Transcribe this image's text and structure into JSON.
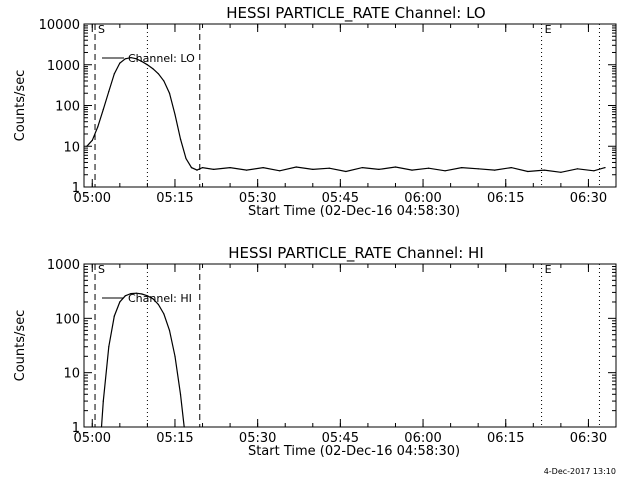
{
  "footer": {
    "date_stamp": "4-Dec-2017 13:10"
  },
  "colors": {
    "background": "#ffffff",
    "ink": "#000000"
  },
  "chart_data": [
    {
      "type": "line",
      "title": "HESSI PARTICLE_RATE Channel: LO",
      "xlabel": "Start Time (02-Dec-16 04:58:30)",
      "ylabel": "Counts/sec",
      "y_scale": "log",
      "xlim": [
        "04:58:30",
        "06:35:00"
      ],
      "ylim": [
        1,
        10000
      ],
      "x_tick_labels": [
        "05:00",
        "05:15",
        "05:30",
        "05:45",
        "06:00",
        "06:15",
        "06:30"
      ],
      "y_tick_labels": [
        "1",
        "10",
        "100",
        "1000",
        "10000"
      ],
      "legend": "Channel: LO",
      "legend_position": "top-left",
      "markers": [
        {
          "label": "S",
          "time": "05:00:30",
          "style": "dashed"
        },
        {
          "label": "",
          "time": "05:10:00",
          "style": "dotted"
        },
        {
          "label": "",
          "time": "05:19:30",
          "style": "dashed"
        },
        {
          "label": "E",
          "time": "06:21:30",
          "style": "dotted"
        },
        {
          "label": "",
          "time": "06:32:00",
          "style": "dotted"
        }
      ],
      "series": [
        {
          "name": "Channel: LO",
          "x": [
            "04:59:00",
            "05:00:00",
            "05:01:00",
            "05:02:00",
            "05:03:00",
            "05:04:00",
            "05:05:00",
            "05:06:00",
            "05:07:00",
            "05:08:00",
            "05:09:00",
            "05:10:00",
            "05:11:00",
            "05:12:00",
            "05:13:00",
            "05:14:00",
            "05:15:00",
            "05:16:00",
            "05:17:00",
            "05:18:00",
            "05:19:00",
            "05:20:00",
            "05:22:00",
            "05:25:00",
            "05:28:00",
            "05:31:00",
            "05:34:00",
            "05:37:00",
            "05:40:00",
            "05:43:00",
            "05:46:00",
            "05:49:00",
            "05:52:00",
            "05:55:00",
            "05:58:00",
            "06:01:00",
            "06:04:00",
            "06:07:00",
            "06:10:00",
            "06:13:00",
            "06:16:00",
            "06:19:00",
            "06:22:00",
            "06:25:00",
            "06:28:00",
            "06:31:00",
            "06:33:00"
          ],
          "y": [
            10,
            14,
            30,
            80,
            220,
            600,
            1100,
            1400,
            1500,
            1400,
            1200,
            1000,
            800,
            600,
            400,
            200,
            60,
            15,
            5,
            3,
            2.6,
            3.0,
            2.7,
            3.0,
            2.6,
            3.0,
            2.5,
            3.1,
            2.7,
            2.9,
            2.4,
            3.0,
            2.7,
            3.1,
            2.6,
            2.9,
            2.5,
            3.0,
            2.8,
            2.6,
            3.0,
            2.4,
            2.6,
            2.3,
            2.8,
            2.5,
            3.0
          ]
        }
      ]
    },
    {
      "type": "line",
      "title": "HESSI PARTICLE_RATE Channel: HI",
      "xlabel": "Start Time (02-Dec-16 04:58:30)",
      "ylabel": "Counts/sec",
      "y_scale": "log",
      "xlim": [
        "04:58:30",
        "06:35:00"
      ],
      "ylim": [
        1,
        1000
      ],
      "x_tick_labels": [
        "05:00",
        "05:15",
        "05:30",
        "05:45",
        "06:00",
        "06:15",
        "06:30"
      ],
      "y_tick_labels": [
        "1",
        "10",
        "100",
        "1000"
      ],
      "legend": "Channel: HI",
      "legend_position": "top-left",
      "markers": [
        {
          "label": "S",
          "time": "05:00:30",
          "style": "dashed"
        },
        {
          "label": "",
          "time": "05:10:00",
          "style": "dotted"
        },
        {
          "label": "",
          "time": "05:19:30",
          "style": "dashed"
        },
        {
          "label": "E",
          "time": "06:21:30",
          "style": "dotted"
        },
        {
          "label": "",
          "time": "06:32:00",
          "style": "dotted"
        }
      ],
      "series": [
        {
          "name": "Channel: HI",
          "x": [
            "05:01:40",
            "05:02:00",
            "05:03:00",
            "05:04:00",
            "05:05:00",
            "05:06:00",
            "05:07:00",
            "05:08:00",
            "05:09:00",
            "05:10:00",
            "05:11:00",
            "05:12:00",
            "05:13:00",
            "05:14:00",
            "05:15:00",
            "05:16:00",
            "05:16:40"
          ],
          "y": [
            1,
            3,
            30,
            110,
            200,
            260,
            285,
            290,
            280,
            260,
            230,
            180,
            120,
            60,
            20,
            4,
            1
          ]
        }
      ]
    }
  ]
}
